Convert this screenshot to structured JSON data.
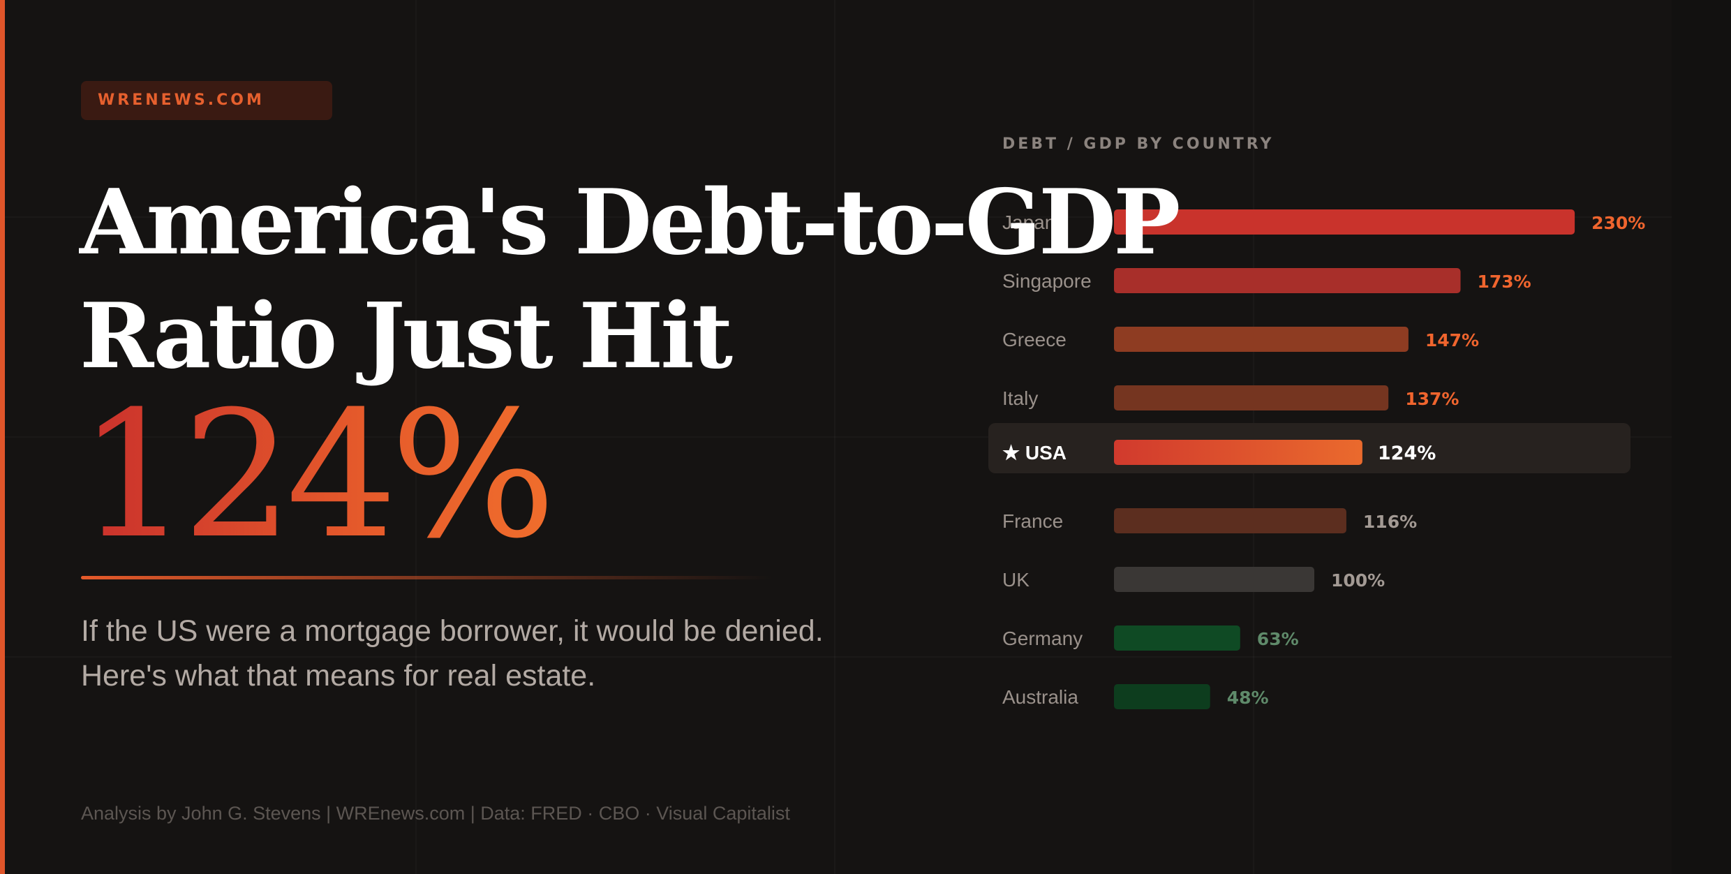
{
  "header": {
    "site_badge": "WRENEWS.COM"
  },
  "headline": {
    "line1": "America's Debt-to-GDP",
    "line2": "Ratio Just Hit",
    "big_number": "124%"
  },
  "subtitle": {
    "line1": "If the US were a mortgage borrower, it would be denied.",
    "line2": "Here's what that means for real estate."
  },
  "credits": "Analysis by John G. Stevens | WREnews.com | Data: FRED · CBO · Visual Capitalist",
  "colors": {
    "accent": "#e6602e",
    "background": "#151312",
    "headline": "#ffffff",
    "high": "#c9332c",
    "usa_start": "#d13a2d",
    "usa_end": "#ea6a2d",
    "neutral": "#3a3735",
    "low": "#0f4a24"
  },
  "chart_data": {
    "type": "bar",
    "orientation": "horizontal",
    "title": "DEBT / GDP BY COUNTRY",
    "highlight": "USA",
    "highlight_marker": "★",
    "unit": "%",
    "categories": [
      "Japan",
      "Singapore",
      "Greece",
      "Italy",
      "USA",
      "France",
      "UK",
      "Germany",
      "Australia"
    ],
    "values": [
      230,
      173,
      147,
      137,
      124,
      116,
      100,
      63,
      48
    ],
    "value_labels": [
      "230%",
      "173%",
      "147%",
      "137%",
      "124%",
      "116%",
      "100%",
      "63%",
      "48%"
    ],
    "bar_colors": [
      "#c9332c",
      "#a82f2a",
      "#8e3c22",
      "#753520",
      "gradient",
      "#5c2e1f",
      "#3a3735",
      "#0f4a24",
      "#0d3d1e"
    ],
    "label_colors": [
      "#f0652e",
      "#f0652e",
      "#f0652e",
      "#f0652e",
      "#ffffff",
      "#a39a94",
      "#a39a94",
      "#5f8a6a",
      "#5f8a6a"
    ]
  }
}
